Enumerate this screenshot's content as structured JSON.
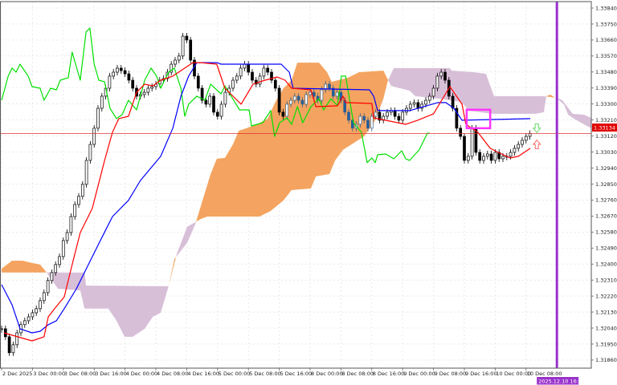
{
  "chart_data": {
    "type": "candlestick",
    "timeframe_note": "hourly bars, x given as bar number counted from the first visible bar",
    "colors": {
      "tenkan": "#ff0000",
      "kijun": "#0000ff",
      "chikou": "#00e000",
      "cloud_bull": "#f4a460",
      "cloud_bear": "#d8bfd8",
      "current_price_line": "#e03030",
      "time_marker": "#9932cc",
      "highlight_box": "#ff33ff",
      "arrow_up": "#66dd66",
      "arrow_down": "#ff6666",
      "candle_in_cloud": "#1f5fa0"
    },
    "y_axis": {
      "ticks": [
        "1.33840",
        "1.33750",
        "1.33660",
        "1.33570",
        "1.33480",
        "1.33390",
        "1.33300",
        "1.33210",
        "1.33120",
        "1.33030",
        "1.32940",
        "1.32850",
        "1.32760",
        "1.32670",
        "1.32580",
        "1.32490",
        "1.32400",
        "1.32310",
        "1.32220",
        "1.32130",
        "1.32040",
        "1.31950",
        "1.31860"
      ],
      "range": [
        1.3181,
        1.3388
      ],
      "grid": true
    },
    "x_axis": {
      "ticks": [
        {
          "bar": 0,
          "label": "2 Dec 2025"
        },
        {
          "bar": 8,
          "label": "3 Dec 00:00"
        },
        {
          "bar": 16,
          "label": "3 Dec 08:00"
        },
        {
          "bar": 24,
          "label": "3 Dec 16:00"
        },
        {
          "bar": 32,
          "label": "4 Dec 00:00"
        },
        {
          "bar": 40,
          "label": "4 Dec 08:00"
        },
        {
          "bar": 48,
          "label": "4 Dec 16:00"
        },
        {
          "bar": 56,
          "label": "5 Dec 00:00"
        },
        {
          "bar": 64,
          "label": "5 Dec 08:00"
        },
        {
          "bar": 72,
          "label": "5 Dec 16:00"
        },
        {
          "bar": 80,
          "label": "8 Dec 00:00"
        },
        {
          "bar": 88,
          "label": "8 Dec 08:00"
        },
        {
          "bar": 96,
          "label": "8 Dec 16:00"
        },
        {
          "bar": 104,
          "label": "9 Dec 00:00"
        },
        {
          "bar": 112,
          "label": "9 Dec 08:00"
        },
        {
          "bar": 120,
          "label": "9 Dec 16:00"
        },
        {
          "bar": 128,
          "label": "10 Dec 00:00"
        },
        {
          "bar": 136,
          "label": "10 Dec 08:00"
        }
      ],
      "grid": true
    },
    "current_price": {
      "value": 1.33134,
      "label": "1.33134"
    },
    "time_marker": {
      "bar": 144,
      "label": "2025.12.10 16:00"
    },
    "closes": [
      1.32036,
      1.31991,
      1.31901,
      1.31946,
      1.32013,
      1.32059,
      1.32081,
      1.32103,
      1.32126,
      1.32149,
      1.32194,
      1.32239,
      1.32307,
      1.32352,
      1.32397,
      1.32442,
      1.32532,
      1.32577,
      1.32667,
      1.32735,
      1.32781,
      1.32848,
      1.32983,
      1.33073,
      1.33164,
      1.33276,
      1.33344,
      1.33389,
      1.33457,
      1.33479,
      1.33502,
      1.33488,
      1.3347,
      1.33434,
      1.33389,
      1.33344,
      1.33353,
      1.33366,
      1.33389,
      1.33398,
      1.33412,
      1.33434,
      1.33443,
      1.33479,
      1.33524,
      1.33547,
      1.3357,
      1.33682,
      1.3366,
      1.33547,
      1.33457,
      1.33389,
      1.33321,
      1.33299,
      1.33344,
      1.33254,
      1.33231,
      1.33299,
      1.33366,
      1.33389,
      1.33434,
      1.33457,
      1.33502,
      1.33524,
      1.33479,
      1.33434,
      1.33412,
      1.33457,
      1.33502,
      1.33479,
      1.33434,
      1.33389,
      1.33254,
      1.33231,
      1.33299,
      1.33321,
      1.33344,
      1.33321,
      1.33299,
      1.33353,
      1.33366,
      1.33344,
      1.33321,
      1.3338,
      1.33412,
      1.33389,
      1.33344,
      1.33366,
      1.33321,
      1.33254,
      1.33209,
      1.33164,
      1.33186,
      1.33231,
      1.33209,
      1.33164,
      1.33231,
      1.33254,
      1.33209,
      1.33231,
      1.33254,
      1.33263,
      1.33231,
      1.33209,
      1.33254,
      1.33276,
      1.33299,
      1.33308,
      1.33276,
      1.33299,
      1.33321,
      1.33344,
      1.33389,
      1.33457,
      1.33479,
      1.33434,
      1.33344,
      1.33276,
      1.33164,
      1.33118,
      1.32983,
      1.33006,
      1.33164,
      1.33028,
      1.32983,
      1.33006,
      1.33019,
      1.32983,
      1.33028,
      1.32992,
      1.33006,
      1.33006,
      1.33028,
      1.33051,
      1.33073,
      1.33096,
      1.33118,
      1.33134
    ],
    "tenkan": [
      [
        0.6,
        1.32013
      ],
      [
        7.9,
        1.31968
      ],
      [
        11,
        1.31991
      ],
      [
        12.1,
        1.32103
      ],
      [
        13.75,
        1.32149
      ],
      [
        16.25,
        1.32216
      ],
      [
        18.3,
        1.32397
      ],
      [
        20.4,
        1.32577
      ],
      [
        23.5,
        1.32712
      ],
      [
        26.7,
        1.32983
      ],
      [
        28.75,
        1.33141
      ],
      [
        30.4,
        1.33218
      ],
      [
        32.9,
        1.33231
      ],
      [
        35,
        1.33366
      ],
      [
        37.1,
        1.33412
      ],
      [
        39.2,
        1.33402
      ],
      [
        41.25,
        1.33434
      ],
      [
        44.4,
        1.33457
      ],
      [
        47.5,
        1.33502
      ],
      [
        49.6,
        1.33533
      ],
      [
        51.7,
        1.33533
      ],
      [
        55.8,
        1.33524
      ],
      [
        57.9,
        1.33389
      ],
      [
        62.1,
        1.33299
      ],
      [
        65.2,
        1.33412
      ],
      [
        68.3,
        1.33434
      ],
      [
        71.5,
        1.33452
      ],
      [
        73.5,
        1.33434
      ],
      [
        75.2,
        1.33389
      ],
      [
        80.2,
        1.3338
      ],
      [
        81.5,
        1.33285
      ],
      [
        87.1,
        1.3329
      ],
      [
        88.5,
        1.33344
      ],
      [
        89.2,
        1.33308
      ],
      [
        96,
        1.33303
      ],
      [
        96.5,
        1.33222
      ],
      [
        104.8,
        1.33186
      ],
      [
        107.9,
        1.33209
      ],
      [
        112,
        1.33245
      ],
      [
        113.75,
        1.33308
      ],
      [
        116.25,
        1.33398
      ],
      [
        119.4,
        1.33299
      ],
      [
        120.4,
        1.33186
      ],
      [
        123.5,
        1.33141
      ],
      [
        126.7,
        1.33051
      ],
      [
        128.75,
        1.33028
      ],
      [
        131.9,
        1.32997
      ],
      [
        134,
        1.33006
      ],
      [
        137.1,
        1.33051
      ]
    ],
    "kijun": [
      [
        0,
        1.32284
      ],
      [
        2.7,
        1.32171
      ],
      [
        4.8,
        1.32036
      ],
      [
        7.9,
        1.32013
      ],
      [
        10,
        1.32022
      ],
      [
        12.1,
        1.32059
      ],
      [
        14.2,
        1.32081
      ],
      [
        16.25,
        1.32149
      ],
      [
        19.4,
        1.32261
      ],
      [
        22.5,
        1.32397
      ],
      [
        25.6,
        1.32532
      ],
      [
        28.75,
        1.32667
      ],
      [
        32.9,
        1.32758
      ],
      [
        36,
        1.3287
      ],
      [
        41.25,
        1.33006
      ],
      [
        44.4,
        1.33164
      ],
      [
        46.5,
        1.33344
      ],
      [
        48.5,
        1.33457
      ],
      [
        50.6,
        1.33533
      ],
      [
        55.8,
        1.33533
      ],
      [
        56.9,
        1.33524
      ],
      [
        72.5,
        1.33524
      ],
      [
        74.6,
        1.33479
      ],
      [
        75.6,
        1.33389
      ],
      [
        95.4,
        1.3338
      ],
      [
        96.5,
        1.33344
      ],
      [
        97.5,
        1.33263
      ],
      [
        105.8,
        1.33263
      ],
      [
        113.1,
        1.33308
      ],
      [
        115.2,
        1.33308
      ],
      [
        117.3,
        1.33276
      ],
      [
        119.4,
        1.33209
      ],
      [
        137.1,
        1.33218
      ]
    ],
    "chikou": [
      [
        0,
        1.33321
      ],
      [
        1.7,
        1.33457
      ],
      [
        2.7,
        1.33502
      ],
      [
        3.75,
        1.33479
      ],
      [
        4.8,
        1.33524
      ],
      [
        6.9,
        1.33457
      ],
      [
        7.9,
        1.33398
      ],
      [
        10,
        1.33389
      ],
      [
        11,
        1.33321
      ],
      [
        12.7,
        1.33389
      ],
      [
        14.2,
        1.3338
      ],
      [
        15.2,
        1.33434
      ],
      [
        17.3,
        1.33448
      ],
      [
        18.3,
        1.33592
      ],
      [
        20.4,
        1.33434
      ],
      [
        21.9,
        1.33705
      ],
      [
        22.9,
        1.33727
      ],
      [
        24,
        1.33524
      ],
      [
        25.2,
        1.33434
      ],
      [
        26.7,
        1.33425
      ],
      [
        28.1,
        1.33276
      ],
      [
        29.8,
        1.33218
      ],
      [
        31.25,
        1.3324
      ],
      [
        32.9,
        1.33321
      ],
      [
        35,
        1.33267
      ],
      [
        37.1,
        1.33434
      ],
      [
        38.75,
        1.33502
      ],
      [
        40.2,
        1.33457
      ],
      [
        41.25,
        1.33389
      ],
      [
        43.3,
        1.33479
      ],
      [
        44.8,
        1.33502
      ],
      [
        46.5,
        1.33389
      ],
      [
        47.5,
        1.33231
      ],
      [
        48.5,
        1.33299
      ],
      [
        50.6,
        1.33344
      ],
      [
        52.7,
        1.33321
      ],
      [
        54.2,
        1.33412
      ],
      [
        56.9,
        1.33357
      ],
      [
        57.9,
        1.33402
      ],
      [
        61.7,
        1.33267
      ],
      [
        64.2,
        1.33267
      ],
      [
        64.8,
        1.33177
      ],
      [
        67.7,
        1.33195
      ],
      [
        69.8,
        1.33263
      ],
      [
        70.8,
        1.33118
      ],
      [
        72.1,
        1.33195
      ],
      [
        74,
        1.33222
      ],
      [
        75.2,
        1.33186
      ],
      [
        76.7,
        1.33285
      ],
      [
        78.1,
        1.33195
      ],
      [
        80.2,
        1.33285
      ],
      [
        82.3,
        1.3333
      ],
      [
        83.5,
        1.33267
      ],
      [
        85.4,
        1.3333
      ],
      [
        87.1,
        1.3329
      ],
      [
        88.1,
        1.33457
      ],
      [
        89.2,
        1.33457
      ],
      [
        91.25,
        1.33195
      ],
      [
        93.3,
        1.33141
      ],
      [
        94.8,
        1.3297
      ],
      [
        96,
        1.32997
      ],
      [
        96.9,
        1.3297
      ],
      [
        97.5,
        1.33015
      ],
      [
        99.6,
        1.33019
      ],
      [
        101.7,
        1.32992
      ],
      [
        103.75,
        1.33037
      ],
      [
        104.8,
        1.32992
      ],
      [
        105.8,
        1.32983
      ],
      [
        108.3,
        1.33042
      ],
      [
        110.4,
        1.33136
      ],
      [
        111,
        1.33136
      ]
    ],
    "span_a": [
      [
        0,
        1.32374
      ],
      [
        2.7,
        1.32419
      ],
      [
        5.4,
        1.32419
      ],
      [
        7.9,
        1.32406
      ],
      [
        10,
        1.32397
      ],
      [
        11.7,
        1.32352
      ],
      [
        14.6,
        1.32261
      ],
      [
        20.4,
        1.32252
      ],
      [
        21.5,
        1.32149
      ],
      [
        27.7,
        1.32149
      ],
      [
        29.8,
        1.32081
      ],
      [
        31.9,
        1.31991
      ],
      [
        34,
        1.31991
      ],
      [
        37.1,
        1.32036
      ],
      [
        39.2,
        1.32103
      ],
      [
        41.25,
        1.32126
      ],
      [
        43.3,
        1.32275
      ],
      [
        44.8,
        1.32428
      ],
      [
        48.1,
        1.32519
      ],
      [
        50.2,
        1.32622
      ],
      [
        52.1,
        1.32758
      ],
      [
        54.2,
        1.32906
      ],
      [
        55.8,
        1.32992
      ],
      [
        57.9,
        1.32997
      ],
      [
        60,
        1.33073
      ],
      [
        61.5,
        1.3315
      ],
      [
        63.5,
        1.33164
      ],
      [
        66.25,
        1.33186
      ],
      [
        69,
        1.33218
      ],
      [
        71,
        1.33312
      ],
      [
        73.1,
        1.33389
      ],
      [
        75.2,
        1.33434
      ],
      [
        76.7,
        1.33533
      ],
      [
        82.3,
        1.33533
      ],
      [
        84.4,
        1.33479
      ],
      [
        85.6,
        1.33425
      ],
      [
        89.8,
        1.33448
      ],
      [
        92.7,
        1.33479
      ],
      [
        99,
        1.33488
      ],
      [
        101,
        1.33402
      ],
      [
        105.8,
        1.33375
      ],
      [
        107.3,
        1.33344
      ],
      [
        113.5,
        1.3333
      ],
      [
        119,
        1.33312
      ],
      [
        120.4,
        1.33285
      ],
      [
        120.8,
        1.33263
      ],
      [
        127.3,
        1.33245
      ],
      [
        138.5,
        1.33245
      ],
      [
        140.6,
        1.33254
      ],
      [
        141.25,
        1.33344
      ],
      [
        142.3,
        1.33353
      ],
      [
        144,
        1.3333
      ],
      [
        145.8,
        1.33299
      ],
      [
        146.9,
        1.3324
      ],
      [
        148.1,
        1.33222
      ],
      [
        151,
        1.33186
      ],
      [
        152.9,
        1.33164
      ]
    ],
    "span_b": [
      [
        0,
        1.32352
      ],
      [
        21.5,
        1.32352
      ],
      [
        21.9,
        1.32279
      ],
      [
        43.3,
        1.32275
      ],
      [
        45.4,
        1.32455
      ],
      [
        48.1,
        1.32609
      ],
      [
        51.7,
        1.32654
      ],
      [
        53.3,
        1.32667
      ],
      [
        66.9,
        1.32667
      ],
      [
        69.8,
        1.32699
      ],
      [
        73.1,
        1.32758
      ],
      [
        75.2,
        1.32816
      ],
      [
        80.2,
        1.32825
      ],
      [
        81.5,
        1.32893
      ],
      [
        85,
        1.32906
      ],
      [
        86.5,
        1.32983
      ],
      [
        88.5,
        1.33042
      ],
      [
        94,
        1.33118
      ],
      [
        96.9,
        1.33209
      ],
      [
        99,
        1.3333
      ],
      [
        100.2,
        1.33434
      ],
      [
        101.7,
        1.33502
      ],
      [
        116.25,
        1.33502
      ],
      [
        116.7,
        1.33488
      ],
      [
        122.5,
        1.33479
      ],
      [
        125.6,
        1.3347
      ],
      [
        127.7,
        1.33344
      ],
      [
        140.6,
        1.33344
      ],
      [
        144,
        1.33335
      ],
      [
        145.4,
        1.33321
      ],
      [
        148.1,
        1.33245
      ],
      [
        151,
        1.3324
      ],
      [
        152.9,
        1.33222
      ]
    ],
    "annotations": {
      "highlight_box": {
        "bar_from": 120.6,
        "bar_to": 126.7,
        "price_top": 1.33268,
        "price_bottom": 1.33164
      },
      "arrow_up": {
        "bar": 138.8,
        "price": 1.33164,
        "direction": "up"
      },
      "arrow_down": {
        "bar": 138.8,
        "price": 1.33073,
        "direction": "down"
      }
    }
  }
}
